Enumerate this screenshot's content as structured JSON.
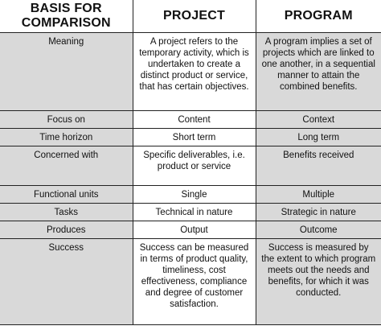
{
  "header": {
    "col1": "BASIS FOR COMPARISON",
    "col2": "PROJECT",
    "col3": "PROGRAM"
  },
  "rows": [
    {
      "basis": "Meaning",
      "project": "A project refers to the temporary activity, which is undertaken to create a distinct product or service, that has certain objectives.",
      "program": "A program implies a set of projects which are linked to one another, in a sequential manner to attain the combined benefits."
    },
    {
      "basis": "Focus on",
      "project": "Content",
      "program": "Context"
    },
    {
      "basis": "Time horizon",
      "project": "Short term",
      "program": "Long term"
    },
    {
      "basis": "Concerned with",
      "project": "Specific deliverables, i.e. product or service",
      "program": "Benefits received"
    },
    {
      "basis": "Functional units",
      "project": "Single",
      "program": "Multiple"
    },
    {
      "basis": "Tasks",
      "project": "Technical in nature",
      "program": "Strategic in nature"
    },
    {
      "basis": "Produces",
      "project": "Output",
      "program": "Outcome"
    },
    {
      "basis": "Success",
      "project": "Success can be measured in terms of product quality, timeliness, cost effectiveness, compliance and degree of customer satisfaction.",
      "program": "Success is measured by the extent to which program meets out the needs and benefits, for which it was conducted."
    }
  ]
}
